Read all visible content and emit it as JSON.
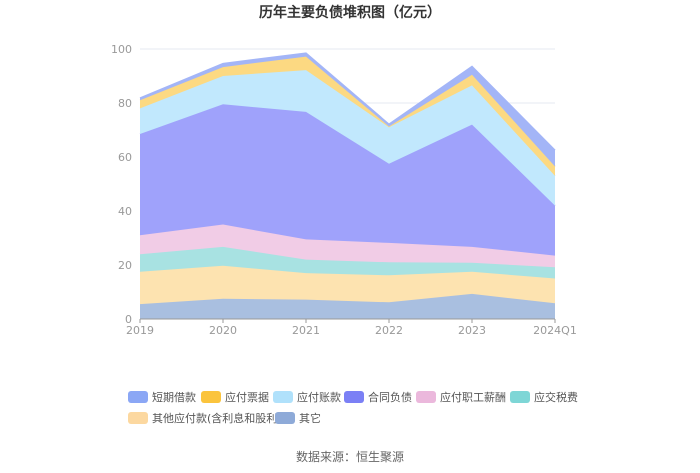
{
  "chart_data": {
    "type": "area",
    "title": "历年主要负债堆积图（亿元）",
    "x": [
      "2019",
      "2020",
      "2021",
      "2022",
      "2023",
      "2024Q1"
    ],
    "ylim": [
      0,
      100
    ],
    "yticks": [
      "0",
      "20",
      "40",
      "60",
      "80",
      "100"
    ],
    "grid": true,
    "legend_position": "bottom",
    "series": [
      {
        "name": "其它",
        "color": "#a9bfe0",
        "values": [
          5.5,
          7.5,
          7.2,
          6.2,
          9.3,
          5.8
        ]
      },
      {
        "name": "其他应付款(含利息和股利)",
        "color": "#fde3b0",
        "values": [
          12.0,
          12.2,
          9.8,
          10.0,
          8.2,
          9.2
        ]
      },
      {
        "name": "应交税费",
        "color": "#a8e2e2",
        "values": [
          6.5,
          7.0,
          5.0,
          4.8,
          3.3,
          4.2
        ]
      },
      {
        "name": "应付职工薪酬",
        "color": "#f1cce6",
        "values": [
          7.0,
          8.3,
          7.5,
          7.2,
          5.9,
          4.3
        ]
      },
      {
        "name": "合同负债",
        "color": "#9fa2fb",
        "values": [
          37.5,
          44.5,
          47.2,
          29.3,
          45.3,
          18.5
        ]
      },
      {
        "name": "应付账款",
        "color": "#c1e8fd",
        "values": [
          9.5,
          10.5,
          15.5,
          13.5,
          14.5,
          11.0
        ]
      },
      {
        "name": "应付票据",
        "color": "#fcd982",
        "values": [
          3.0,
          3.3,
          5.0,
          0.3,
          4.0,
          3.5
        ]
      },
      {
        "name": "短期借款",
        "color": "#a3b5f7",
        "values": [
          0.8,
          1.3,
          1.3,
          0.8,
          3.0,
          6.0
        ]
      }
    ],
    "legend_colors": {
      "短期借款": "#8ba7f5",
      "应付票据": "#fbc43d",
      "应付账款": "#b0e1fb",
      "合同负债": "#7b80f5",
      "应付职工薪酬": "#ebb8dc",
      "应交税费": "#7ed6d6",
      "其他应付款(含利息和股利)": "#fcd8a0",
      "其它": "#8eaad8"
    },
    "legend_order": [
      "短期借款",
      "应付票据",
      "应付账款",
      "合同负债",
      "应付职工薪酬",
      "应交税费",
      "其他应付款(含利息和股利)",
      "其它"
    ]
  },
  "source": "数据来源：恒生聚源"
}
